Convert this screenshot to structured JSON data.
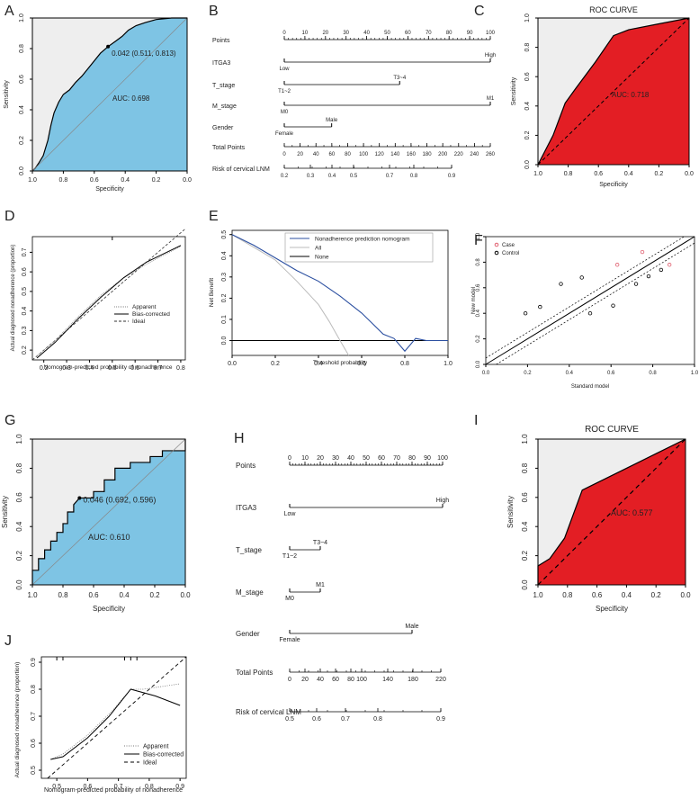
{
  "panels": [
    {
      "letter": "A"
    },
    {
      "letter": "B"
    },
    {
      "letter": "C"
    },
    {
      "letter": "D"
    },
    {
      "letter": "E"
    },
    {
      "letter": "F"
    },
    {
      "letter": "G"
    },
    {
      "letter": "H"
    },
    {
      "letter": "I"
    },
    {
      "letter": "J"
    }
  ],
  "colors": {
    "roc_fill": "#7ec4e4",
    "roc2_fill": "#e31e24",
    "bg_grey": "#eeeeee",
    "dca_blue": "#2b4fa0",
    "case_red": "#e06070"
  },
  "chart_data": [
    {
      "panel": "A",
      "type": "line",
      "kind": "roc",
      "xlabel": "Specificity",
      "ylabel": "Sensitivity",
      "x_ticks": [
        "1.0",
        "0.8",
        "0.6",
        "0.4",
        "0.2",
        "0.0"
      ],
      "y_ticks": [
        "0.0",
        "0.2",
        "0.4",
        "0.6",
        "0.8",
        "1.0"
      ],
      "auc_label": "AUC: 0.698",
      "point_label": "0.042 (0.511, 0.813)",
      "point": {
        "spec": 0.511,
        "sens": 0.813
      },
      "curve": [
        [
          1.0,
          0.0
        ],
        [
          0.98,
          0.02
        ],
        [
          0.96,
          0.05
        ],
        [
          0.93,
          0.1
        ],
        [
          0.9,
          0.2
        ],
        [
          0.88,
          0.3
        ],
        [
          0.86,
          0.38
        ],
        [
          0.83,
          0.45
        ],
        [
          0.8,
          0.5
        ],
        [
          0.76,
          0.53
        ],
        [
          0.72,
          0.58
        ],
        [
          0.68,
          0.62
        ],
        [
          0.64,
          0.67
        ],
        [
          0.6,
          0.72
        ],
        [
          0.56,
          0.77
        ],
        [
          0.511,
          0.813
        ],
        [
          0.46,
          0.85
        ],
        [
          0.42,
          0.88
        ],
        [
          0.38,
          0.92
        ],
        [
          0.33,
          0.95
        ],
        [
          0.27,
          0.97
        ],
        [
          0.2,
          0.99
        ],
        [
          0.1,
          1.0
        ],
        [
          0.0,
          1.0
        ]
      ]
    },
    {
      "panel": "B",
      "type": "table",
      "kind": "nomogram",
      "rows": [
        {
          "name": "Points",
          "ticks": [
            "0",
            "10",
            "20",
            "30",
            "40",
            "50",
            "60",
            "70",
            "80",
            "90",
            "100"
          ]
        },
        {
          "name": "ITGA3",
          "levels": [
            "Low",
            "High"
          ]
        },
        {
          "name": "T_stage",
          "levels": [
            "T1~2",
            "T3~4"
          ]
        },
        {
          "name": "M_stage",
          "levels": [
            "M0",
            "M1"
          ]
        },
        {
          "name": "Gender",
          "levels": [
            "Female",
            "Male"
          ]
        },
        {
          "name": "Total Points",
          "ticks": [
            "0",
            "20",
            "40",
            "60",
            "80",
            "100",
            "120",
            "140",
            "160",
            "180",
            "200",
            "220",
            "240",
            "260"
          ]
        },
        {
          "name": "Risk of cervical LNM",
          "ticks": [
            "0.2",
            "0.3",
            "0.4",
            "0.5",
            "0.7",
            "0.8",
            "0.9"
          ]
        }
      ],
      "level_points": {
        "ITGA3": [
          0,
          100
        ],
        "T_stage": [
          0,
          56
        ],
        "M_stage": [
          0,
          100
        ],
        "Gender": [
          0,
          23
        ]
      }
    },
    {
      "panel": "C",
      "type": "area",
      "kind": "roc",
      "title": "ROC CURVE",
      "xlabel": "Specificity",
      "ylabel": "Sensitivity",
      "x_ticks": [
        "1.0",
        "0.8",
        "0.6",
        "0.4",
        "0.2",
        "0.0"
      ],
      "y_ticks": [
        "0.0",
        "0.2",
        "0.4",
        "0.6",
        "0.8",
        "1.0"
      ],
      "auc_label": "AUC: 0.718",
      "curve": [
        [
          1.0,
          0.0
        ],
        [
          0.9,
          0.2
        ],
        [
          0.82,
          0.42
        ],
        [
          0.75,
          0.52
        ],
        [
          0.62,
          0.7
        ],
        [
          0.5,
          0.88
        ],
        [
          0.4,
          0.92
        ],
        [
          0.2,
          0.96
        ],
        [
          0.0,
          1.0
        ]
      ]
    },
    {
      "panel": "D",
      "type": "line",
      "kind": "calibration",
      "xlabel": "Nomogram-predicted probability of nonadherence",
      "ylabel": "Actual diagnosed nonadherence (proportion)",
      "x_ticks": [
        "0.2",
        "0.3",
        "0.4",
        "0.5",
        "0.6",
        "0.7",
        "0.8"
      ],
      "y_ticks": [
        "0.2",
        "0.3",
        "0.4",
        "0.5",
        "0.6",
        "0.7"
      ],
      "xlim": [
        0.15,
        0.82
      ],
      "ylim": [
        0.15,
        0.78
      ],
      "legend": [
        "Apparent",
        "Bias-corrected",
        "Ideal"
      ],
      "series": [
        {
          "name": "Apparent",
          "points": [
            [
              0.17,
              0.17
            ],
            [
              0.25,
              0.25
            ],
            [
              0.35,
              0.37
            ],
            [
              0.45,
              0.48
            ],
            [
              0.55,
              0.57
            ],
            [
              0.65,
              0.64
            ],
            [
              0.8,
              0.73
            ]
          ]
        },
        {
          "name": "Bias-corrected",
          "points": [
            [
              0.17,
              0.16
            ],
            [
              0.25,
              0.24
            ],
            [
              0.35,
              0.36
            ],
            [
              0.45,
              0.47
            ],
            [
              0.55,
              0.57
            ],
            [
              0.65,
              0.65
            ],
            [
              0.8,
              0.735
            ]
          ]
        }
      ]
    },
    {
      "panel": "E",
      "type": "line",
      "kind": "decision_curve",
      "xlabel": "Threshold probability",
      "ylabel": "Net Benefit",
      "x_ticks": [
        "0.0",
        "0.2",
        "0.4",
        "0.6",
        "0.8",
        "1.0"
      ],
      "y_ticks": [
        "0.0",
        "0.1",
        "0.2",
        "0.3",
        "0.4",
        "0.5"
      ],
      "xlim": [
        0,
        1
      ],
      "ylim": [
        -0.07,
        0.52
      ],
      "legend": [
        "Nonadherence prediction nomogram",
        "All",
        "None"
      ],
      "series": [
        {
          "name": "Nonadherence prediction nomogram",
          "points": [
            [
              0.0,
              0.5
            ],
            [
              0.1,
              0.45
            ],
            [
              0.2,
              0.39
            ],
            [
              0.3,
              0.33
            ],
            [
              0.4,
              0.28
            ],
            [
              0.5,
              0.21
            ],
            [
              0.6,
              0.13
            ],
            [
              0.65,
              0.08
            ],
            [
              0.7,
              0.03
            ],
            [
              0.75,
              0.01
            ],
            [
              0.8,
              -0.05
            ],
            [
              0.85,
              0.01
            ],
            [
              0.9,
              0.0
            ],
            [
              1.0,
              0.0
            ]
          ]
        },
        {
          "name": "All",
          "points": [
            [
              0.0,
              0.5
            ],
            [
              0.1,
              0.44
            ],
            [
              0.2,
              0.38
            ],
            [
              0.3,
              0.28
            ],
            [
              0.4,
              0.17
            ],
            [
              0.45,
              0.09
            ],
            [
              0.5,
              0.0
            ],
            [
              0.54,
              -0.07
            ]
          ]
        },
        {
          "name": "None",
          "points": [
            [
              0.0,
              0.0
            ],
            [
              1.0,
              0.0
            ]
          ]
        }
      ]
    },
    {
      "panel": "F",
      "type": "scatter",
      "kind": "model_comparison",
      "xlabel": "Standard model",
      "ylabel": "New model",
      "x_ticks": [
        "0.0",
        "0.2",
        "0.4",
        "0.6",
        "0.8",
        "1.0"
      ],
      "y_ticks": [
        "0.0",
        "0.2",
        "0.4",
        "0.6",
        "0.8",
        "1.0"
      ],
      "xlim": [
        0,
        1
      ],
      "ylim": [
        0,
        1
      ],
      "legend": [
        "Case",
        "Control"
      ],
      "series": [
        {
          "name": "Case",
          "points": [
            [
              0.63,
              0.78
            ],
            [
              0.75,
              0.88
            ],
            [
              0.88,
              0.78
            ]
          ]
        },
        {
          "name": "Control",
          "points": [
            [
              0.19,
              0.4
            ],
            [
              0.26,
              0.45
            ],
            [
              0.36,
              0.63
            ],
            [
              0.46,
              0.68
            ],
            [
              0.5,
              0.4
            ],
            [
              0.61,
              0.46
            ],
            [
              0.72,
              0.63
            ],
            [
              0.78,
              0.69
            ],
            [
              0.84,
              0.74
            ]
          ]
        }
      ]
    },
    {
      "panel": "G",
      "type": "line",
      "kind": "roc",
      "xlabel": "Specificity",
      "ylabel": "Sensitivity",
      "x_ticks": [
        "1.0",
        "0.8",
        "0.6",
        "0.4",
        "0.2",
        "0.0"
      ],
      "y_ticks": [
        "0.0",
        "0.2",
        "0.4",
        "0.6",
        "0.8",
        "1.0"
      ],
      "auc_label": "AUC: 0.610",
      "point_label": "0.046 (0.692, 0.596)",
      "point": {
        "spec": 0.692,
        "sens": 0.596
      },
      "curve": [
        [
          1.0,
          0.0
        ],
        [
          1.0,
          0.1
        ],
        [
          0.96,
          0.1
        ],
        [
          0.96,
          0.18
        ],
        [
          0.92,
          0.18
        ],
        [
          0.92,
          0.24
        ],
        [
          0.88,
          0.24
        ],
        [
          0.88,
          0.3
        ],
        [
          0.84,
          0.3
        ],
        [
          0.84,
          0.36
        ],
        [
          0.8,
          0.36
        ],
        [
          0.8,
          0.42
        ],
        [
          0.77,
          0.42
        ],
        [
          0.77,
          0.5
        ],
        [
          0.73,
          0.5
        ],
        [
          0.73,
          0.55
        ],
        [
          0.692,
          0.596
        ],
        [
          0.6,
          0.596
        ],
        [
          0.6,
          0.64
        ],
        [
          0.53,
          0.64
        ],
        [
          0.53,
          0.72
        ],
        [
          0.46,
          0.72
        ],
        [
          0.46,
          0.8
        ],
        [
          0.36,
          0.8
        ],
        [
          0.36,
          0.84
        ],
        [
          0.23,
          0.84
        ],
        [
          0.23,
          0.88
        ],
        [
          0.15,
          0.88
        ],
        [
          0.15,
          0.92
        ],
        [
          0.08,
          0.92
        ],
        [
          0.0,
          0.92
        ],
        [
          0.0,
          1.0
        ]
      ]
    },
    {
      "panel": "H",
      "type": "table",
      "kind": "nomogram",
      "rows": [
        {
          "name": "Points",
          "ticks": [
            "0",
            "10",
            "20",
            "30",
            "40",
            "50",
            "60",
            "70",
            "80",
            "90",
            "100"
          ]
        },
        {
          "name": "ITGA3",
          "levels": [
            "Low",
            "High"
          ]
        },
        {
          "name": "T_stage",
          "levels": [
            "T1~2",
            "T3~4"
          ]
        },
        {
          "name": "M_stage",
          "levels": [
            "M0",
            "M1"
          ]
        },
        {
          "name": "Gender",
          "levels": [
            "Female",
            "Male"
          ]
        },
        {
          "name": "Total Points",
          "ticks": [
            "0",
            "20",
            "40",
            "60",
            "80",
            "100",
            "140",
            "180",
            "220"
          ]
        },
        {
          "name": "Risk of cervical LNM",
          "ticks": [
            "0.5",
            "0.6",
            "0.7",
            "0.8",
            "0.9"
          ]
        }
      ],
      "level_points": {
        "ITGA3": [
          0,
          100
        ],
        "T_stage": [
          0,
          20
        ],
        "M_stage": [
          0,
          20
        ],
        "Gender": [
          0,
          80
        ]
      }
    },
    {
      "panel": "I",
      "type": "area",
      "kind": "roc",
      "title": "ROC CURVE",
      "xlabel": "Specificity",
      "ylabel": "Sensitivity",
      "x_ticks": [
        "1.0",
        "0.8",
        "0.6",
        "0.4",
        "0.2",
        "0.0"
      ],
      "y_ticks": [
        "0.0",
        "0.2",
        "0.4",
        "0.6",
        "0.8",
        "1.0"
      ],
      "auc_label": "AUC: 0.577",
      "curve": [
        [
          1.0,
          0.0
        ],
        [
          1.0,
          0.13
        ],
        [
          0.92,
          0.18
        ],
        [
          0.82,
          0.32
        ],
        [
          0.7,
          0.65
        ],
        [
          0.4,
          0.8
        ],
        [
          0.2,
          0.9
        ],
        [
          0.0,
          1.0
        ]
      ]
    },
    {
      "panel": "J",
      "type": "line",
      "kind": "calibration",
      "xlabel": "Nomogram-predicted probability of nonadherence",
      "ylabel": "Actual diagnosed nonadherence (proportion)",
      "x_ticks": [
        "0.5",
        "0.6",
        "0.7",
        "0.8",
        "0.9"
      ],
      "y_ticks": [
        "0.5",
        "0.6",
        "0.7",
        "0.8",
        "0.9"
      ],
      "xlim": [
        0.45,
        0.92
      ],
      "ylim": [
        0.47,
        0.92
      ],
      "legend": [
        "Apparent",
        "Bias-corrected",
        "Ideal"
      ],
      "series": [
        {
          "name": "Apparent",
          "points": [
            [
              0.48,
              0.54
            ],
            [
              0.52,
              0.56
            ],
            [
              0.6,
              0.63
            ],
            [
              0.68,
              0.72
            ],
            [
              0.74,
              0.8
            ],
            [
              0.78,
              0.8
            ],
            [
              0.9,
              0.82
            ]
          ]
        },
        {
          "name": "Bias-corrected",
          "points": [
            [
              0.48,
              0.54
            ],
            [
              0.52,
              0.55
            ],
            [
              0.6,
              0.62
            ],
            [
              0.67,
              0.7
            ],
            [
              0.74,
              0.8
            ],
            [
              0.82,
              0.775
            ],
            [
              0.9,
              0.74
            ]
          ]
        }
      ]
    }
  ]
}
